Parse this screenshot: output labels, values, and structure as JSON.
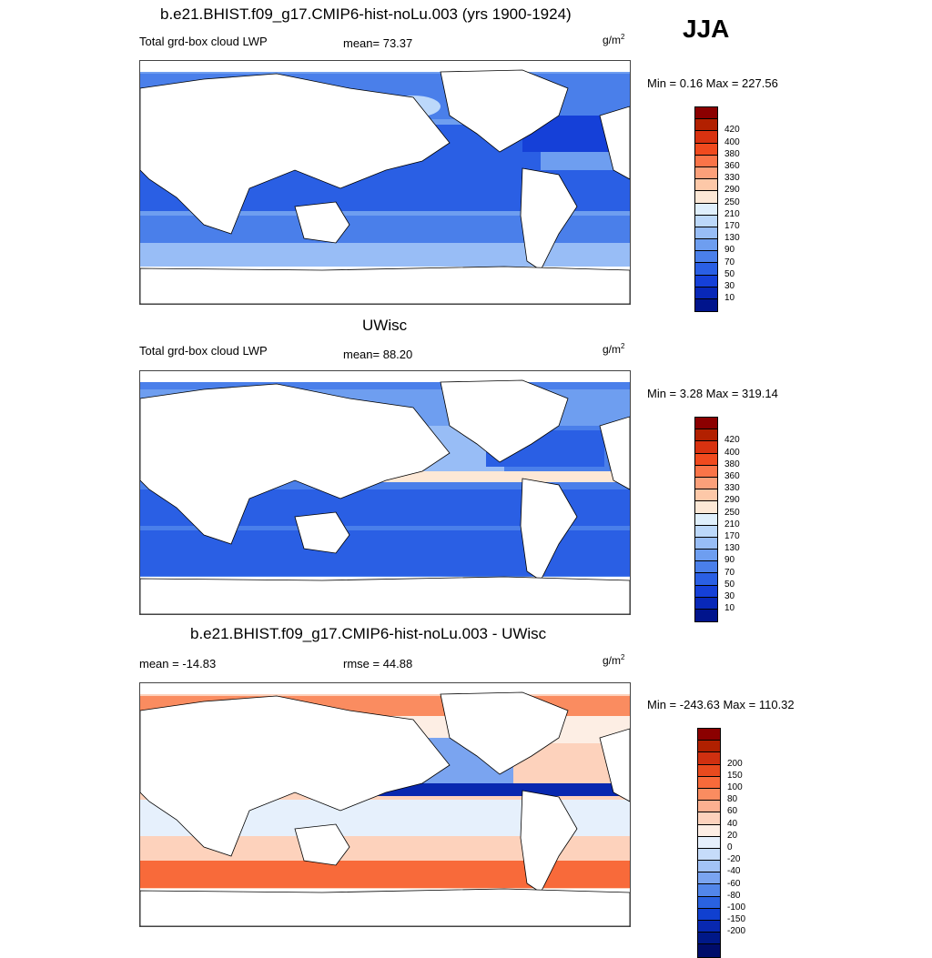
{
  "season": "JJA",
  "panels": [
    {
      "title": "b.e21.BHIST.f09_g17.CMIP6-hist-noLu.003 (yrs 1900-1924)",
      "left_label": "Total grd-box cloud LWP",
      "center_label": "mean=  73.37",
      "units": "g/m",
      "units_sup": "2",
      "minmax": "Min =   0.16 Max = 227.56",
      "colorbar": {
        "colors": [
          "#8b0000",
          "#b22000",
          "#d83210",
          "#f04a1e",
          "#fa7448",
          "#fca07a",
          "#fdc8a8",
          "#fde8d6",
          "#dfeffc",
          "#bcd8fa",
          "#98bdf6",
          "#6e9ef0",
          "#4a7fea",
          "#2a5fe4",
          "#1540d8",
          "#0828b8",
          "#00148c"
        ],
        "ticks": [
          "420",
          "400",
          "380",
          "360",
          "330",
          "290",
          "250",
          "210",
          "170",
          "130",
          "90",
          "70",
          "50",
          "30",
          "10"
        ]
      }
    },
    {
      "title": "UWisc",
      "left_label": "Total grd-box cloud LWP",
      "center_label": "mean=  88.20",
      "units": "g/m",
      "units_sup": "2",
      "minmax": "Min =   3.28 Max = 319.14",
      "colorbar": {
        "colors": [
          "#8b0000",
          "#b22000",
          "#d83210",
          "#f04a1e",
          "#fa7448",
          "#fca07a",
          "#fdc8a8",
          "#fde8d6",
          "#dfeffc",
          "#bcd8fa",
          "#98bdf6",
          "#6e9ef0",
          "#4a7fea",
          "#2a5fe4",
          "#1540d8",
          "#0828b8",
          "#00148c"
        ],
        "ticks": [
          "420",
          "400",
          "380",
          "360",
          "330",
          "290",
          "250",
          "210",
          "170",
          "130",
          "90",
          "70",
          "50",
          "30",
          "10"
        ]
      }
    },
    {
      "title": "b.e21.BHIST.f09_g17.CMIP6-hist-noLu.003 - UWisc",
      "left_label": "mean = -14.83",
      "center_label": "rmse =  44.88",
      "units": "g/m",
      "units_sup": "2",
      "minmax": "Min = -243.63 Max = 110.32",
      "colorbar": {
        "colors": [
          "#8b0000",
          "#b02000",
          "#d03010",
          "#e84a1e",
          "#f86a3a",
          "#fa8c60",
          "#fcb090",
          "#fdd2bc",
          "#fdeee4",
          "#e6f0fc",
          "#c6dcfa",
          "#a2c2f6",
          "#7aa4f0",
          "#5286ea",
          "#2a62e0",
          "#1040d0",
          "#0828b0",
          "#001888",
          "#000c6a"
        ],
        "ticks": [
          "200",
          "150",
          "100",
          "80",
          "60",
          "40",
          "20",
          "0",
          "-20",
          "-40",
          "-60",
          "-80",
          "-100",
          "-150",
          "-200"
        ]
      }
    }
  ]
}
